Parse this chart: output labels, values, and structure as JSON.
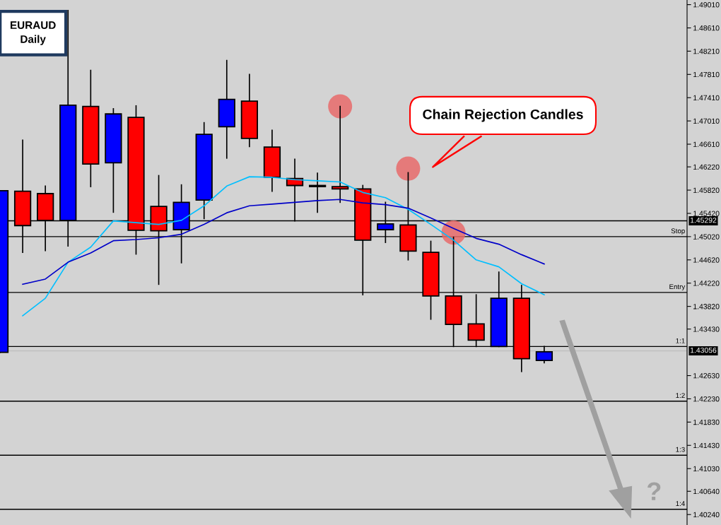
{
  "chart_data": {
    "type": "candlestick",
    "title": "EURAUD",
    "subtitle": "Daily",
    "categories": [
      null,
      null,
      null,
      null,
      null,
      null,
      null,
      null,
      null,
      null,
      null,
      null,
      null,
      null,
      null,
      null,
      null,
      null,
      null,
      null,
      null,
      null,
      null,
      null,
      null
    ],
    "ohlc": [
      [
        1.4303,
        1.4581,
        1.4303,
        1.4581
      ],
      [
        1.458,
        1.4668,
        1.4475,
        1.4521
      ],
      [
        1.4576,
        1.4589,
        1.4478,
        1.453
      ],
      [
        1.453,
        1.4891,
        1.4486,
        1.4728
      ],
      [
        1.4726,
        1.4788,
        1.4588,
        1.4627
      ],
      [
        1.4629,
        1.4722,
        1.4544,
        1.4713
      ],
      [
        1.4707,
        1.4727,
        1.4472,
        1.4513
      ],
      [
        1.4554,
        1.4607,
        1.442,
        1.4512
      ],
      [
        1.4514,
        1.4591,
        1.4457,
        1.4561
      ],
      [
        1.4565,
        1.4698,
        1.4533,
        1.4678
      ],
      [
        1.4691,
        1.4805,
        1.4637,
        1.4738
      ],
      [
        1.4735,
        1.4781,
        1.4657,
        1.4671
      ],
      [
        1.4656,
        1.4685,
        1.458,
        1.4604
      ],
      [
        1.4602,
        1.4635,
        1.4529,
        1.459
      ],
      [
        1.459,
        1.4611,
        1.4544,
        1.4588
      ],
      [
        1.4588,
        1.4726,
        1.4561,
        1.4584
      ],
      [
        1.4584,
        1.459,
        1.4402,
        1.4496
      ],
      [
        1.4514,
        1.4561,
        1.4492,
        1.4524
      ],
      [
        1.4522,
        1.4612,
        1.4462,
        1.4477
      ],
      [
        1.4475,
        1.4494,
        1.436,
        1.44
      ],
      [
        1.44,
        1.4501,
        1.4313,
        1.4351
      ],
      [
        1.4352,
        1.4402,
        1.4313,
        1.4324
      ],
      [
        1.4313,
        1.4441,
        1.4313,
        1.4396
      ],
      [
        1.4396,
        1.4418,
        1.427,
        1.4292
      ],
      [
        1.4289,
        1.4313,
        1.4285,
        1.4304
      ]
    ],
    "colors": [
      "#0000ff",
      "#ff0000",
      "#ff0000",
      "#0000ff",
      "#ff0000",
      "#0000ff",
      "#ff0000",
      "#ff0000",
      "#0000ff",
      "#0000ff",
      "#0000ff",
      "#ff0000",
      "#ff0000",
      "#ff0000",
      "#ff0000",
      "#ff0000",
      "#ff0000",
      "#0000ff",
      "#ff0000",
      "#ff0000",
      "#ff0000",
      "#ff0000",
      "#0000ff",
      "#ff0000",
      "#0000ff"
    ],
    "series": [
      {
        "type": "line",
        "color": "#00bfff",
        "values": [
          null,
          1.4366,
          1.4396,
          1.4458,
          1.4484,
          1.4529,
          1.4526,
          1.4523,
          1.453,
          1.4555,
          1.4589,
          1.4605,
          1.4604,
          1.46,
          1.4598,
          1.4596,
          1.4578,
          1.4569,
          1.4549,
          1.4523,
          1.4496,
          1.4462,
          1.445,
          1.4421,
          1.4402
        ]
      },
      {
        "type": "line",
        "color": "#0000c8",
        "values": [
          null,
          1.442,
          1.4429,
          1.4458,
          1.4474,
          1.4495,
          1.4497,
          1.45,
          1.4506,
          1.4523,
          1.4543,
          1.4555,
          1.4558,
          1.4561,
          1.4564,
          1.4566,
          1.456,
          1.4557,
          1.4551,
          1.4534,
          1.4516,
          1.4499,
          1.4489,
          1.4471,
          1.4455
        ]
      },
      {
        "type": "scatter",
        "color": "#e86a6a",
        "marker": "circle",
        "values": [
          null,
          null,
          null,
          null,
          null,
          null,
          null,
          null,
          null,
          null,
          null,
          null,
          null,
          null,
          null,
          1.4726,
          null,
          null,
          1.4619,
          null,
          1.4509,
          null,
          null,
          null,
          null
        ]
      }
    ],
    "ref_lines": [
      {
        "axis": "y",
        "value": 1.45292,
        "label": "1.45292",
        "color": "#000000"
      },
      {
        "axis": "y",
        "value": 1.43056,
        "label": "1.43056",
        "color": "#c0c0c0"
      },
      {
        "axis": "y",
        "value": 1.4502,
        "label": "Stop"
      },
      {
        "axis": "y",
        "value": 1.4406,
        "label": "Entry"
      },
      {
        "axis": "y",
        "value": 1.4313,
        "label": "1:1"
      },
      {
        "axis": "y",
        "value": 1.4219,
        "label": "1:2"
      },
      {
        "axis": "y",
        "value": 1.4126,
        "label": "1:3"
      },
      {
        "axis": "y",
        "value": 1.4033,
        "label": "1:4"
      }
    ],
    "annotations": [
      "Chain Rejection Candles",
      "?"
    ],
    "ylim": [
      1.4006,
      1.4909
    ],
    "yticks": [
      {
        "value": 1.4024,
        "label": "1.40240"
      },
      {
        "value": 1.4064,
        "label": "1.40640"
      },
      {
        "value": 1.4103,
        "label": "1.41030"
      },
      {
        "value": 1.4143,
        "label": "1.41430"
      },
      {
        "value": 1.4183,
        "label": "1.41830"
      },
      {
        "value": 1.4223,
        "label": "1.42230"
      },
      {
        "value": 1.4263,
        "label": "1.42630"
      },
      {
        "value": 1.4343,
        "label": "1.43430"
      },
      {
        "value": 1.4382,
        "label": "1.43820"
      },
      {
        "value": 1.4422,
        "label": "1.44220"
      },
      {
        "value": 1.4462,
        "label": "1.44620"
      },
      {
        "value": 1.4502,
        "label": "1.45020"
      },
      {
        "value": 1.4542,
        "label": "1.45420"
      },
      {
        "value": 1.4582,
        "label": "1.45820"
      },
      {
        "value": 1.4622,
        "label": "1.46220"
      },
      {
        "value": 1.4661,
        "label": "1.46610"
      },
      {
        "value": 1.4701,
        "label": "1.47010"
      },
      {
        "value": 1.4741,
        "label": "1.47410"
      },
      {
        "value": 1.4781,
        "label": "1.47810"
      },
      {
        "value": 1.4821,
        "label": "1.48210"
      },
      {
        "value": 1.4861,
        "label": "1.48610"
      },
      {
        "value": 1.4901,
        "label": "1.49010"
      }
    ],
    "tick_labels": "y",
    "grid": false,
    "legend": false
  }
}
